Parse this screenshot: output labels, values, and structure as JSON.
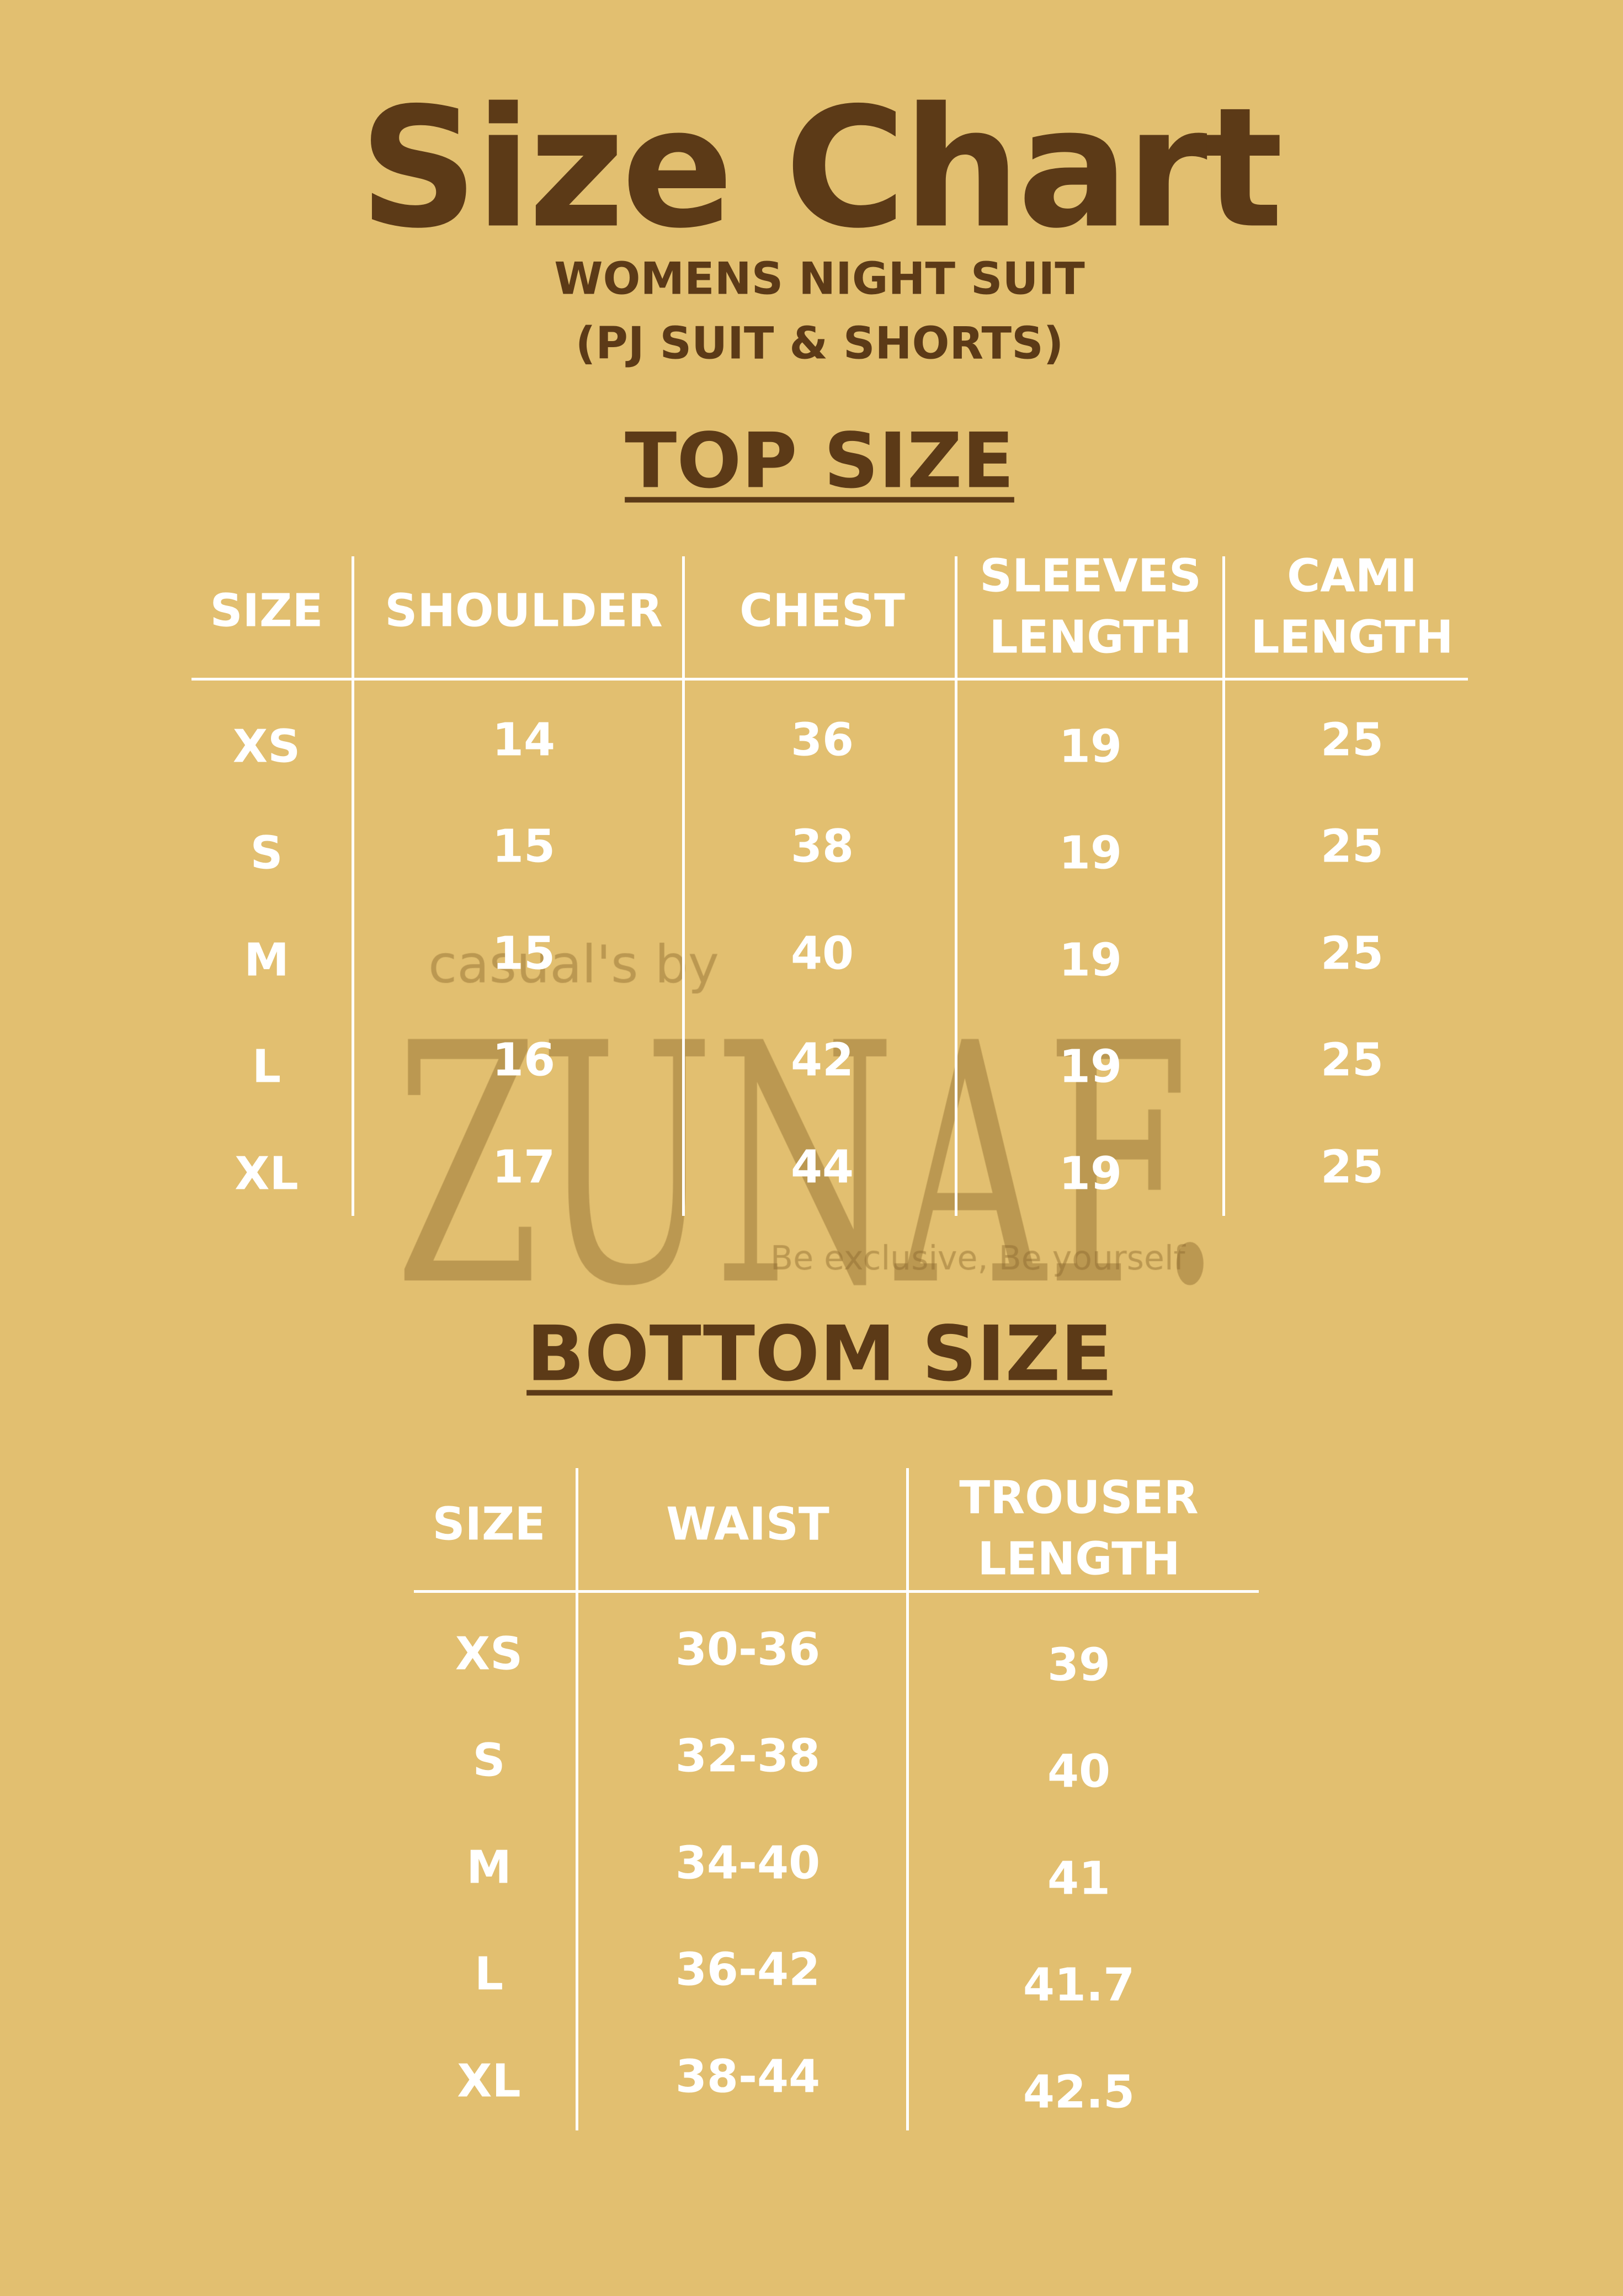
{
  "title": "Size Chart",
  "subtitle_lines": [
    "WOMENS NIGHT SUIT",
    "(PJ SUIT & SHORTS)"
  ],
  "watermark": {
    "top": "casual's by",
    "brand": "ZUNAF",
    "tagline": "Be exclusive, Be yourself"
  },
  "colors": {
    "background": "#E2BF70",
    "heading": "#5C3A17",
    "table_text": "#FFFFFF"
  },
  "top": {
    "heading": "TOP SIZE",
    "headers": [
      [
        "SIZE"
      ],
      [
        "SHOULDER"
      ],
      [
        "CHEST"
      ],
      [
        "SLEEVES",
        "LENGTH"
      ],
      [
        "CAMI",
        "LENGTH"
      ]
    ],
    "rows": [
      [
        "XS",
        "14",
        "36",
        "19",
        "25"
      ],
      [
        "S",
        "15",
        "38",
        "19",
        "25"
      ],
      [
        "M",
        "15",
        "40",
        "19",
        "25"
      ],
      [
        "L",
        "16",
        "42",
        "19",
        "25"
      ],
      [
        "XL",
        "17",
        "44",
        "19",
        "25"
      ]
    ]
  },
  "bottom": {
    "heading": "BOTTOM SIZE",
    "headers": [
      [
        "SIZE"
      ],
      [
        "WAIST"
      ],
      [
        "TROUSER",
        "LENGTH"
      ]
    ],
    "rows": [
      [
        "XS",
        "30-36",
        "39"
      ],
      [
        "S",
        "32-38",
        "40"
      ],
      [
        "M",
        "34-40",
        "41"
      ],
      [
        "L",
        "36-42",
        "41.7"
      ],
      [
        "XL",
        "38-44",
        "42.5"
      ]
    ]
  }
}
